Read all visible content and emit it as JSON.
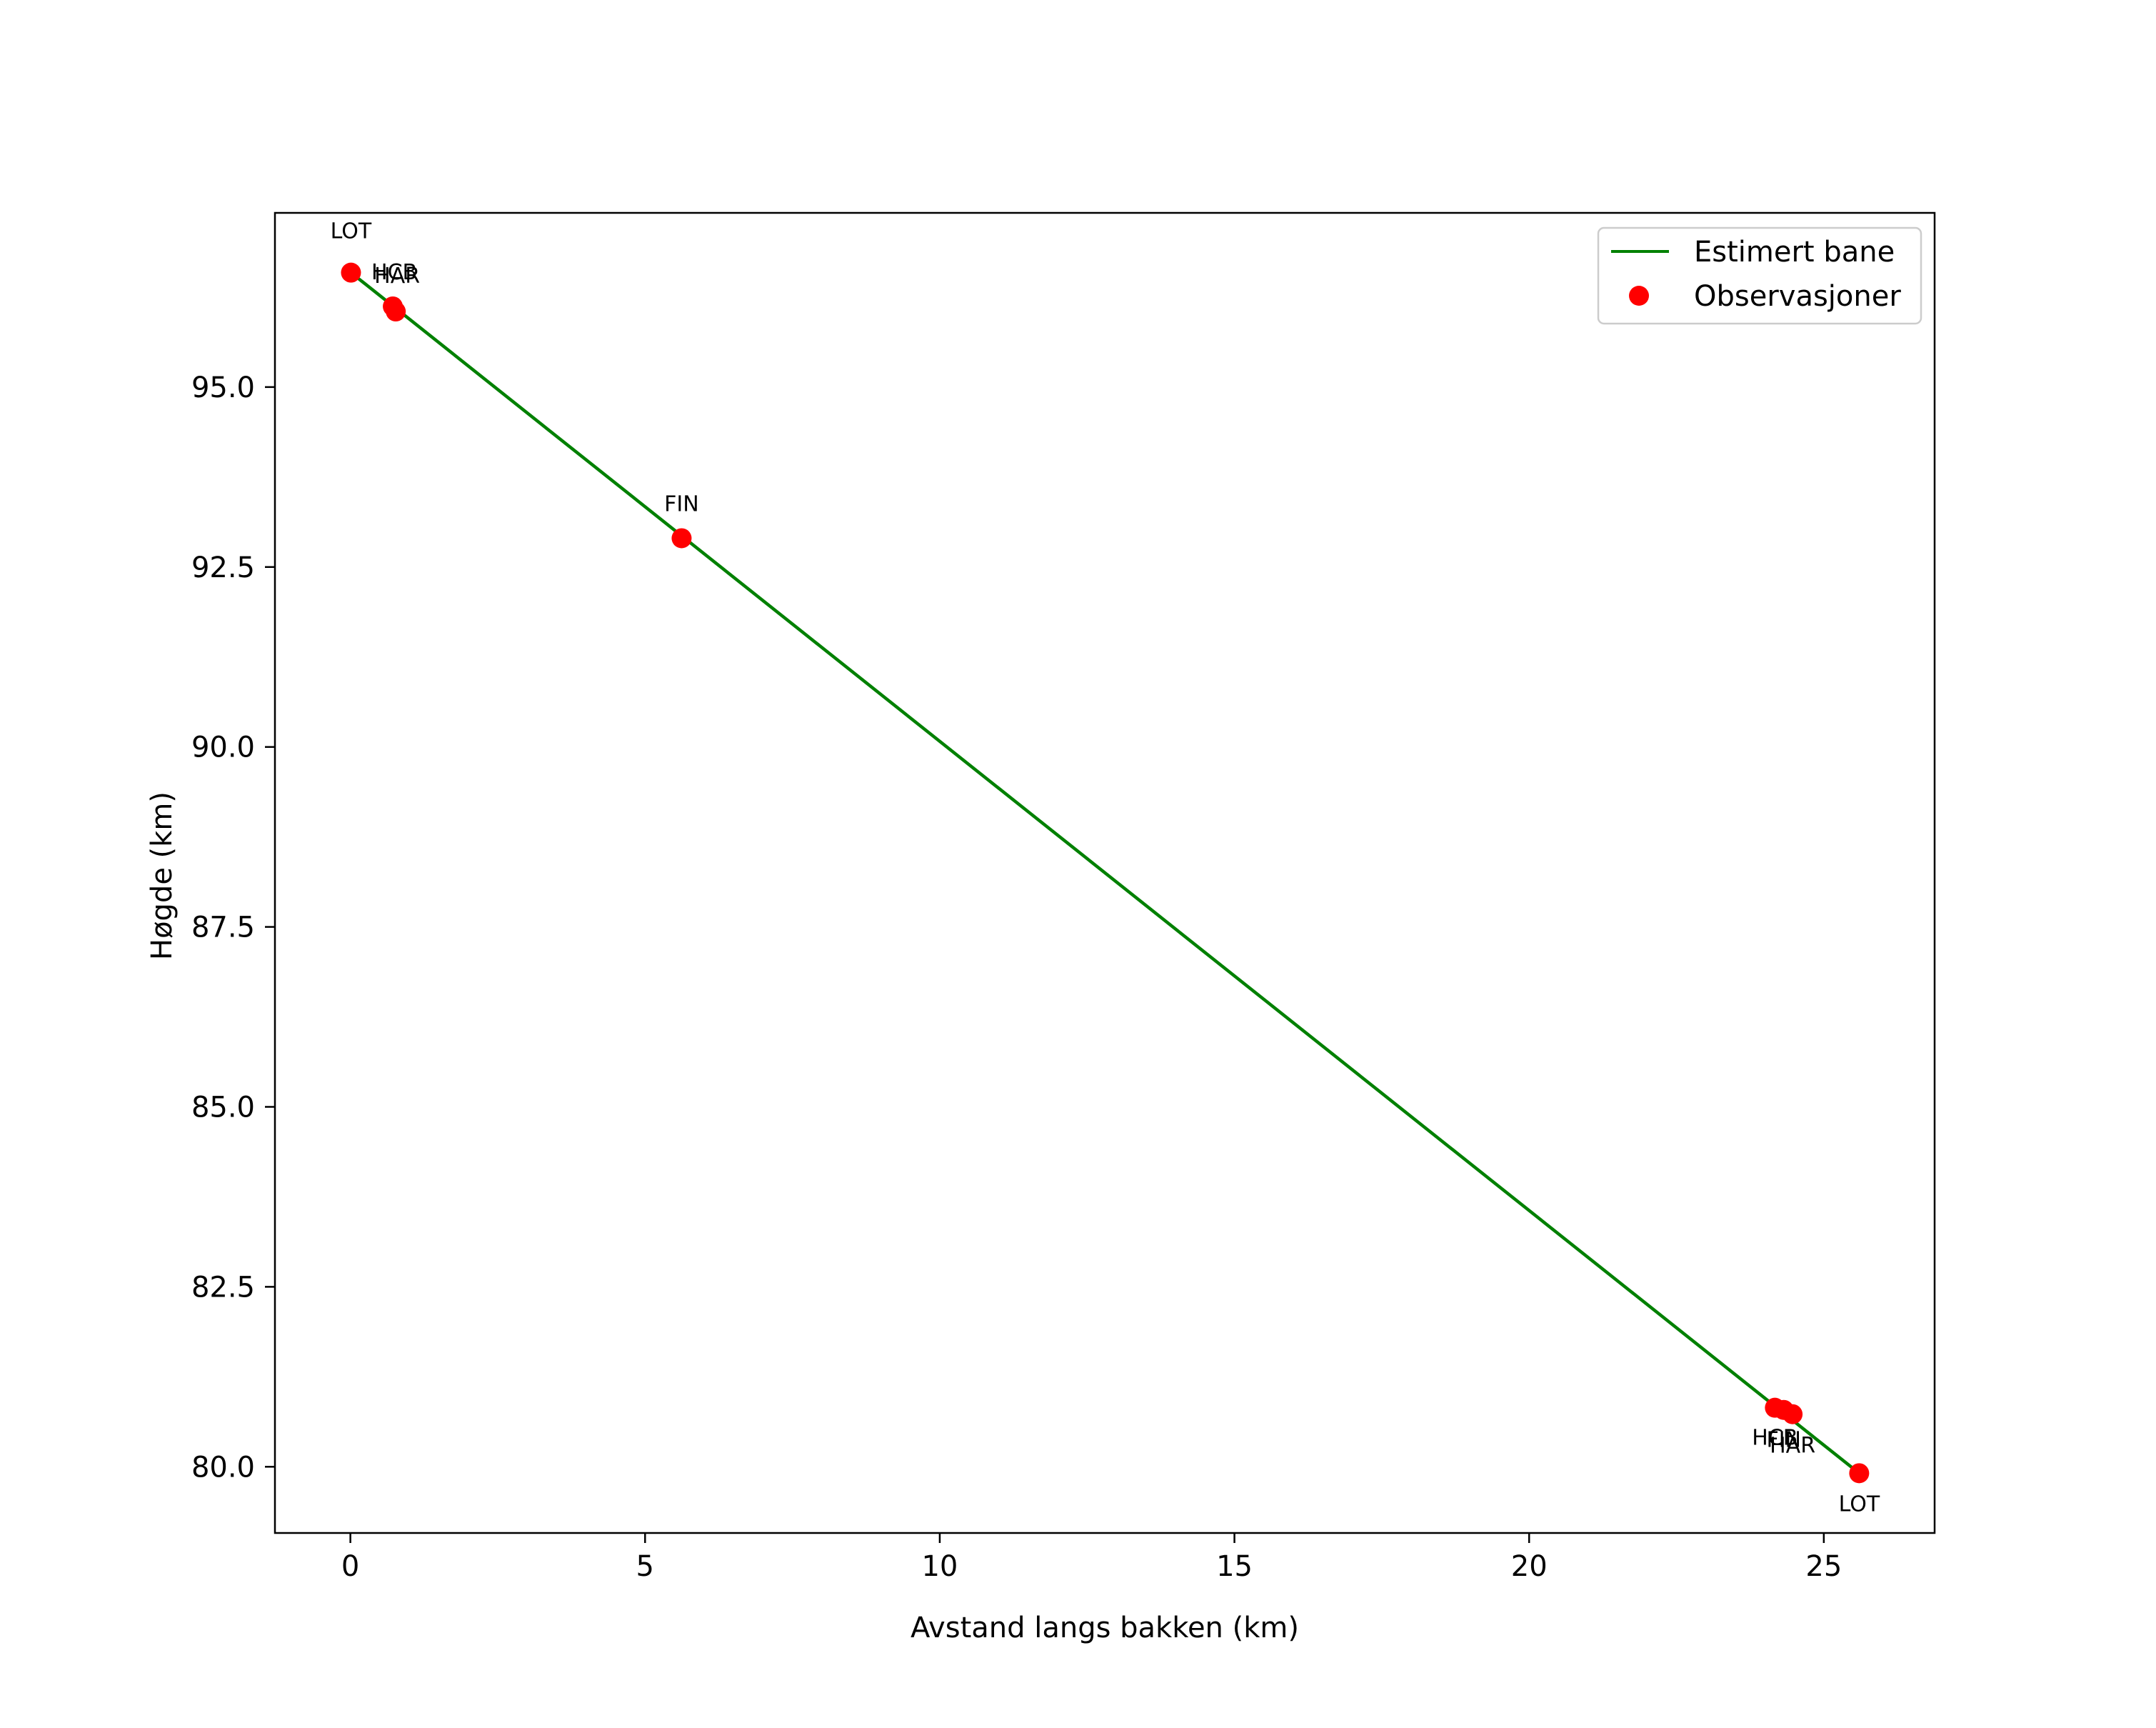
{
  "chart_data": {
    "type": "line",
    "title": "",
    "xlabel": "Avstand langs bakken (km)",
    "ylabel": "Høgde (km)",
    "xlim": [
      -1.28,
      26.88
    ],
    "ylim": [
      79.08,
      97.42
    ],
    "xticks": [
      0,
      5,
      10,
      15,
      20,
      25
    ],
    "xtick_labels": [
      "0",
      "5",
      "10",
      "15",
      "20",
      "25"
    ],
    "yticks": [
      80.0,
      82.5,
      85.0,
      87.5,
      90.0,
      92.5,
      95.0
    ],
    "ytick_labels": [
      "80.0",
      "82.5",
      "85.0",
      "87.5",
      "90.0",
      "92.5",
      "95.0"
    ],
    "grid": false,
    "legend_position": "upper right",
    "series": [
      {
        "name": "Estimert bane",
        "kind": "line",
        "color": "#008000",
        "x": [
          0.01,
          25.6
        ],
        "y": [
          96.59,
          79.91
        ]
      },
      {
        "name": "Observasjoner",
        "kind": "scatter",
        "color": "#ff0000",
        "points": [
          {
            "x": 0.01,
            "y": 96.59,
            "label": "LOT",
            "label_dx": 0,
            "label_dy": -48,
            "anchor": "middle"
          },
          {
            "x": 0.72,
            "y": 96.12,
            "label": "HCB",
            "label_dx": -30,
            "label_dy": -38,
            "anchor": "start"
          },
          {
            "x": 0.77,
            "y": 96.05,
            "label": "HAR",
            "label_dx": -30,
            "label_dy": -40,
            "anchor": "start"
          },
          {
            "x": 5.62,
            "y": 92.9,
            "label": "FIN",
            "label_dx": 0,
            "label_dy": -38,
            "anchor": "middle"
          },
          {
            "x": 24.17,
            "y": 80.82,
            "label": "HCB",
            "label_dx": 0,
            "label_dy": 52,
            "anchor": "middle"
          },
          {
            "x": 24.32,
            "y": 80.79,
            "label": "FIN",
            "label_dx": 0,
            "label_dy": 52,
            "anchor": "middle"
          },
          {
            "x": 24.47,
            "y": 80.73,
            "label": "HAR",
            "label_dx": 0,
            "label_dy": 54,
            "anchor": "middle"
          },
          {
            "x": 25.6,
            "y": 79.91,
            "label": "LOT",
            "label_dx": 0,
            "label_dy": 53,
            "anchor": "middle"
          }
        ]
      }
    ]
  },
  "legend": {
    "items": [
      {
        "label": "Estimert bane",
        "marker": "line",
        "color": "#008000"
      },
      {
        "label": "Observasjoner",
        "marker": "dot",
        "color": "#ff0000"
      }
    ]
  }
}
